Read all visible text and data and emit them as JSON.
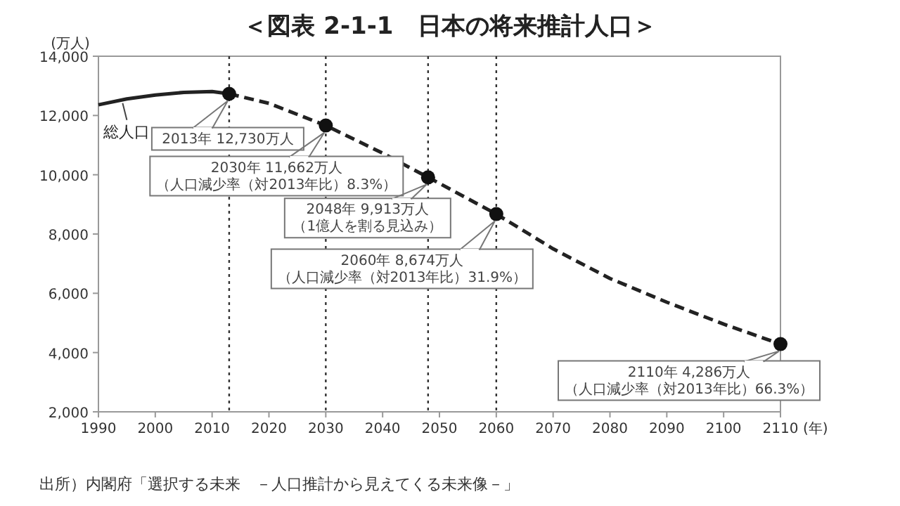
{
  "chart_data": {
    "type": "line",
    "title": "＜図表 2-1-1　日本の将来推計人口＞",
    "ylabel": "(万人)",
    "xlabel": "(年)",
    "xlim": [
      1990,
      2110
    ],
    "xticks": [
      1990,
      2000,
      2010,
      2020,
      2030,
      2040,
      2050,
      2060,
      2070,
      2080,
      2090,
      2100,
      2110
    ],
    "ylim": [
      2000,
      14000
    ],
    "yticks": [
      {
        "value": 2000,
        "label": "2,000"
      },
      {
        "value": 4000,
        "label": "4,000"
      },
      {
        "value": 6000,
        "label": "6,000"
      },
      {
        "value": 8000,
        "label": "8,000"
      },
      {
        "value": 10000,
        "label": "10,000"
      },
      {
        "value": 12000,
        "label": "12,000"
      },
      {
        "value": 14000,
        "label": "14,000"
      }
    ],
    "grid": false,
    "legend": false,
    "series": [
      {
        "name": "総人口",
        "color": "#222222",
        "line_style": "solid",
        "marker": "none",
        "x": [
          1990,
          1995,
          2000,
          2005,
          2010,
          2013
        ],
        "values": [
          12360,
          12560,
          12690,
          12780,
          12810,
          12730
        ]
      },
      {
        "color": "#222222",
        "line_style": "dashed",
        "marker": "none",
        "x": [
          2013,
          2020,
          2030,
          2040,
          2048,
          2050,
          2060,
          2070,
          2080,
          2090,
          2100,
          2110
        ],
        "values": [
          12730,
          12410,
          11662,
          10730,
          9913,
          9710,
          8674,
          7500,
          6500,
          5700,
          4960,
          4286
        ]
      },
      {
        "type": "scatter",
        "color": "#111111",
        "marker": "circle",
        "x": [
          2013,
          2030,
          2048,
          2060,
          2110
        ],
        "values": [
          12730,
          11662,
          9913,
          8674,
          4286
        ]
      }
    ],
    "ref_lines": [
      {
        "axis": "x",
        "value": 2013,
        "line_style": "dotted",
        "color": "#333333"
      },
      {
        "axis": "x",
        "value": 2030,
        "line_style": "dotted",
        "color": "#333333"
      },
      {
        "axis": "x",
        "value": 2048,
        "line_style": "dotted",
        "color": "#333333"
      },
      {
        "axis": "x",
        "value": 2060,
        "line_style": "dotted",
        "color": "#333333"
      }
    ],
    "annotations": [
      {
        "text": "2013年 12,730万人",
        "x": 2013,
        "y": 12730
      },
      {
        "text": "2030年 11,662万人（人口減少率（対2013年比）8.3%）",
        "x": 2030,
        "y": 11662
      },
      {
        "text": "2048年 9,913万人（1億人を割る見込み）",
        "x": 2048,
        "y": 9913
      },
      {
        "text": "2060年 8,674万人（人口減少率（対2013年比）31.9%）",
        "x": 2060,
        "y": 8674
      },
      {
        "text": "2110年 4,286万人（人口減少率（対2013年比）66.3%）",
        "x": 2110,
        "y": 4286
      },
      "出所）内閣府「選択する未来　－人口推計から見えてくる未来像－」"
    ]
  }
}
